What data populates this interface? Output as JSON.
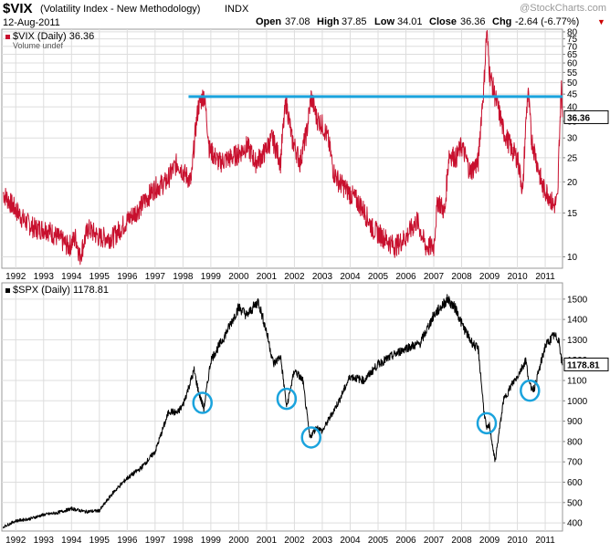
{
  "header": {
    "ticker": "$VIX",
    "name": "(Volatility Index - New Methodology)",
    "exchange": "INDX",
    "date": "12-Aug-2011",
    "open_label": "Open",
    "open": "37.08",
    "high_label": "High",
    "high": "37.85",
    "low_label": "Low",
    "low": "34.01",
    "close_label": "Close",
    "close": "36.36",
    "chg_label": "Chg",
    "chg": "-2.64 (-6.77%)",
    "chg_arrow": "▼",
    "brand": "@StockCharts.com",
    "colors": {
      "up": "#000000",
      "down": "#cc0000",
      "brand": "#999999"
    }
  },
  "chart_data": [
    {
      "type": "line",
      "title": "$VIX (Daily) 36.36",
      "subtitle": "Volume undef",
      "legend_color": "#c8102e",
      "series_color": "#c8102e",
      "scale": "log",
      "ylim": [
        9,
        82
      ],
      "xlim": [
        1991.5,
        2011.62
      ],
      "y_ticks": [
        10,
        15,
        20,
        25,
        30,
        35,
        40,
        45,
        50,
        55,
        60,
        65,
        70,
        75,
        80
      ],
      "y_tick_labels": [
        "10",
        "15",
        "20",
        "25",
        "30",
        "35",
        "40",
        "45",
        "50",
        "55",
        "60",
        "65",
        "70",
        "75",
        "80"
      ],
      "x_ticks": [
        1992,
        1993,
        1994,
        1995,
        1996,
        1997,
        1998,
        1999,
        2000,
        2001,
        2002,
        2003,
        2004,
        2005,
        2006,
        2007,
        2008,
        2009,
        2010,
        2011
      ],
      "x_tick_labels": [
        "1992",
        "1993",
        "1994",
        "1995",
        "1996",
        "1997",
        "1998",
        "1999",
        "2000",
        "2001",
        "2002",
        "2003",
        "2004",
        "2005",
        "2006",
        "2007",
        "2008",
        "2009",
        "2010",
        "2011"
      ],
      "last_value_label": "36.36",
      "last_value": 36.36,
      "x": [
        1991.55,
        1991.9,
        1992.3,
        1992.7,
        1993.1,
        1993.5,
        1993.9,
        1994.15,
        1994.3,
        1994.6,
        1995.0,
        1995.5,
        1996.0,
        1996.5,
        1997.0,
        1997.4,
        1997.8,
        1998.0,
        1998.3,
        1998.55,
        1998.75,
        1998.95,
        1999.3,
        1999.7,
        2000.0,
        2000.3,
        2000.6,
        2000.9,
        2001.2,
        2001.5,
        2001.7,
        2001.9,
        2002.2,
        2002.45,
        2002.6,
        2002.8,
        2003.0,
        2003.2,
        2003.4,
        2003.6,
        2004.0,
        2004.4,
        2004.8,
        2005.2,
        2005.6,
        2006.0,
        2006.4,
        2006.7,
        2007.0,
        2007.15,
        2007.4,
        2007.55,
        2007.8,
        2008.0,
        2008.3,
        2008.6,
        2008.8,
        2008.9,
        2009.0,
        2009.2,
        2009.5,
        2009.8,
        2010.0,
        2010.2,
        2010.38,
        2010.5,
        2010.7,
        2010.9,
        2011.1,
        2011.3,
        2011.45,
        2011.55,
        2011.58,
        2011.62
      ],
      "values": [
        18,
        16,
        14,
        13,
        13,
        12,
        11,
        12,
        10,
        13,
        12,
        12,
        14,
        16,
        19,
        20,
        24,
        22,
        20,
        40,
        45,
        27,
        24,
        25,
        26,
        28,
        24,
        26,
        30,
        24,
        42,
        30,
        24,
        32,
        44,
        36,
        34,
        30,
        22,
        20,
        18,
        16,
        13,
        12,
        11,
        12,
        14,
        11,
        11,
        17,
        15,
        26,
        25,
        28,
        22,
        24,
        48,
        80,
        55,
        44,
        32,
        27,
        25,
        18,
        46,
        30,
        24,
        19,
        18,
        16,
        17,
        40,
        48,
        36.36
      ],
      "annotation": {
        "type": "horizontal_line",
        "y": 44,
        "x_start": 1998.2,
        "x_end": 2011.62,
        "color": "#1aa3dd"
      }
    },
    {
      "type": "line",
      "title": "$SPX (Daily) 1178.81",
      "legend_color": "#000000",
      "series_color": "#000000",
      "scale": "linear",
      "ylim": [
        360,
        1580
      ],
      "xlim": [
        1991.5,
        2011.62
      ],
      "y_ticks": [
        400,
        500,
        600,
        700,
        800,
        900,
        1000,
        1100,
        1200,
        1300,
        1400,
        1500
      ],
      "y_tick_labels": [
        "400",
        "500",
        "600",
        "700",
        "800",
        "900",
        "1000",
        "1100",
        "1200",
        "1300",
        "1400",
        "1500"
      ],
      "x_ticks": [
        1992,
        1993,
        1994,
        1995,
        1996,
        1997,
        1998,
        1999,
        2000,
        2001,
        2002,
        2003,
        2004,
        2005,
        2006,
        2007,
        2008,
        2009,
        2010,
        2011
      ],
      "x_tick_labels": [
        "1992",
        "1993",
        "1994",
        "1995",
        "1996",
        "1997",
        "1998",
        "1999",
        "2000",
        "2001",
        "2002",
        "2003",
        "2004",
        "2005",
        "2006",
        "2007",
        "2008",
        "2009",
        "2010",
        "2011"
      ],
      "last_value_label": "1178.81",
      "last_value": 1178.81,
      "x": [
        1991.55,
        1992.0,
        1992.5,
        1993.0,
        1993.5,
        1994.0,
        1994.5,
        1995.0,
        1995.5,
        1996.0,
        1996.5,
        1997.0,
        1997.5,
        1997.8,
        1998.0,
        1998.4,
        1998.55,
        1998.75,
        1999.0,
        1999.5,
        2000.0,
        2000.3,
        2000.7,
        2001.0,
        2001.25,
        2001.5,
        2001.72,
        2002.0,
        2002.3,
        2002.55,
        2002.8,
        2003.0,
        2003.2,
        2003.6,
        2004.0,
        2004.5,
        2005.0,
        2005.5,
        2006.0,
        2006.5,
        2007.0,
        2007.5,
        2007.8,
        2008.0,
        2008.3,
        2008.6,
        2008.8,
        2008.9,
        2009.0,
        2009.2,
        2009.5,
        2009.8,
        2010.0,
        2010.3,
        2010.45,
        2010.6,
        2010.8,
        2011.0,
        2011.3,
        2011.5,
        2011.58,
        2011.62
      ],
      "values": [
        380,
        410,
        420,
        440,
        450,
        470,
        455,
        460,
        550,
        620,
        670,
        750,
        950,
        940,
        980,
        1150,
        1050,
        960,
        1200,
        1320,
        1460,
        1420,
        1490,
        1340,
        1180,
        1220,
        970,
        1150,
        1100,
        820,
        870,
        850,
        900,
        1000,
        1120,
        1100,
        1180,
        1220,
        1260,
        1280,
        1420,
        1500,
        1450,
        1380,
        1300,
        1250,
        950,
        860,
        880,
        700,
        1000,
        1080,
        1120,
        1200,
        1070,
        1060,
        1160,
        1270,
        1320,
        1300,
        1200,
        1178.81
      ],
      "annotations": [
        {
          "type": "circle",
          "x": 1998.7,
          "y": 990
        },
        {
          "type": "circle",
          "x": 2001.72,
          "y": 1010
        },
        {
          "type": "circle",
          "x": 2002.6,
          "y": 820
        },
        {
          "type": "circle",
          "x": 2008.9,
          "y": 890
        },
        {
          "type": "circle",
          "x": 2010.45,
          "y": 1050
        }
      ],
      "annotation_color": "#1aa3dd"
    }
  ]
}
